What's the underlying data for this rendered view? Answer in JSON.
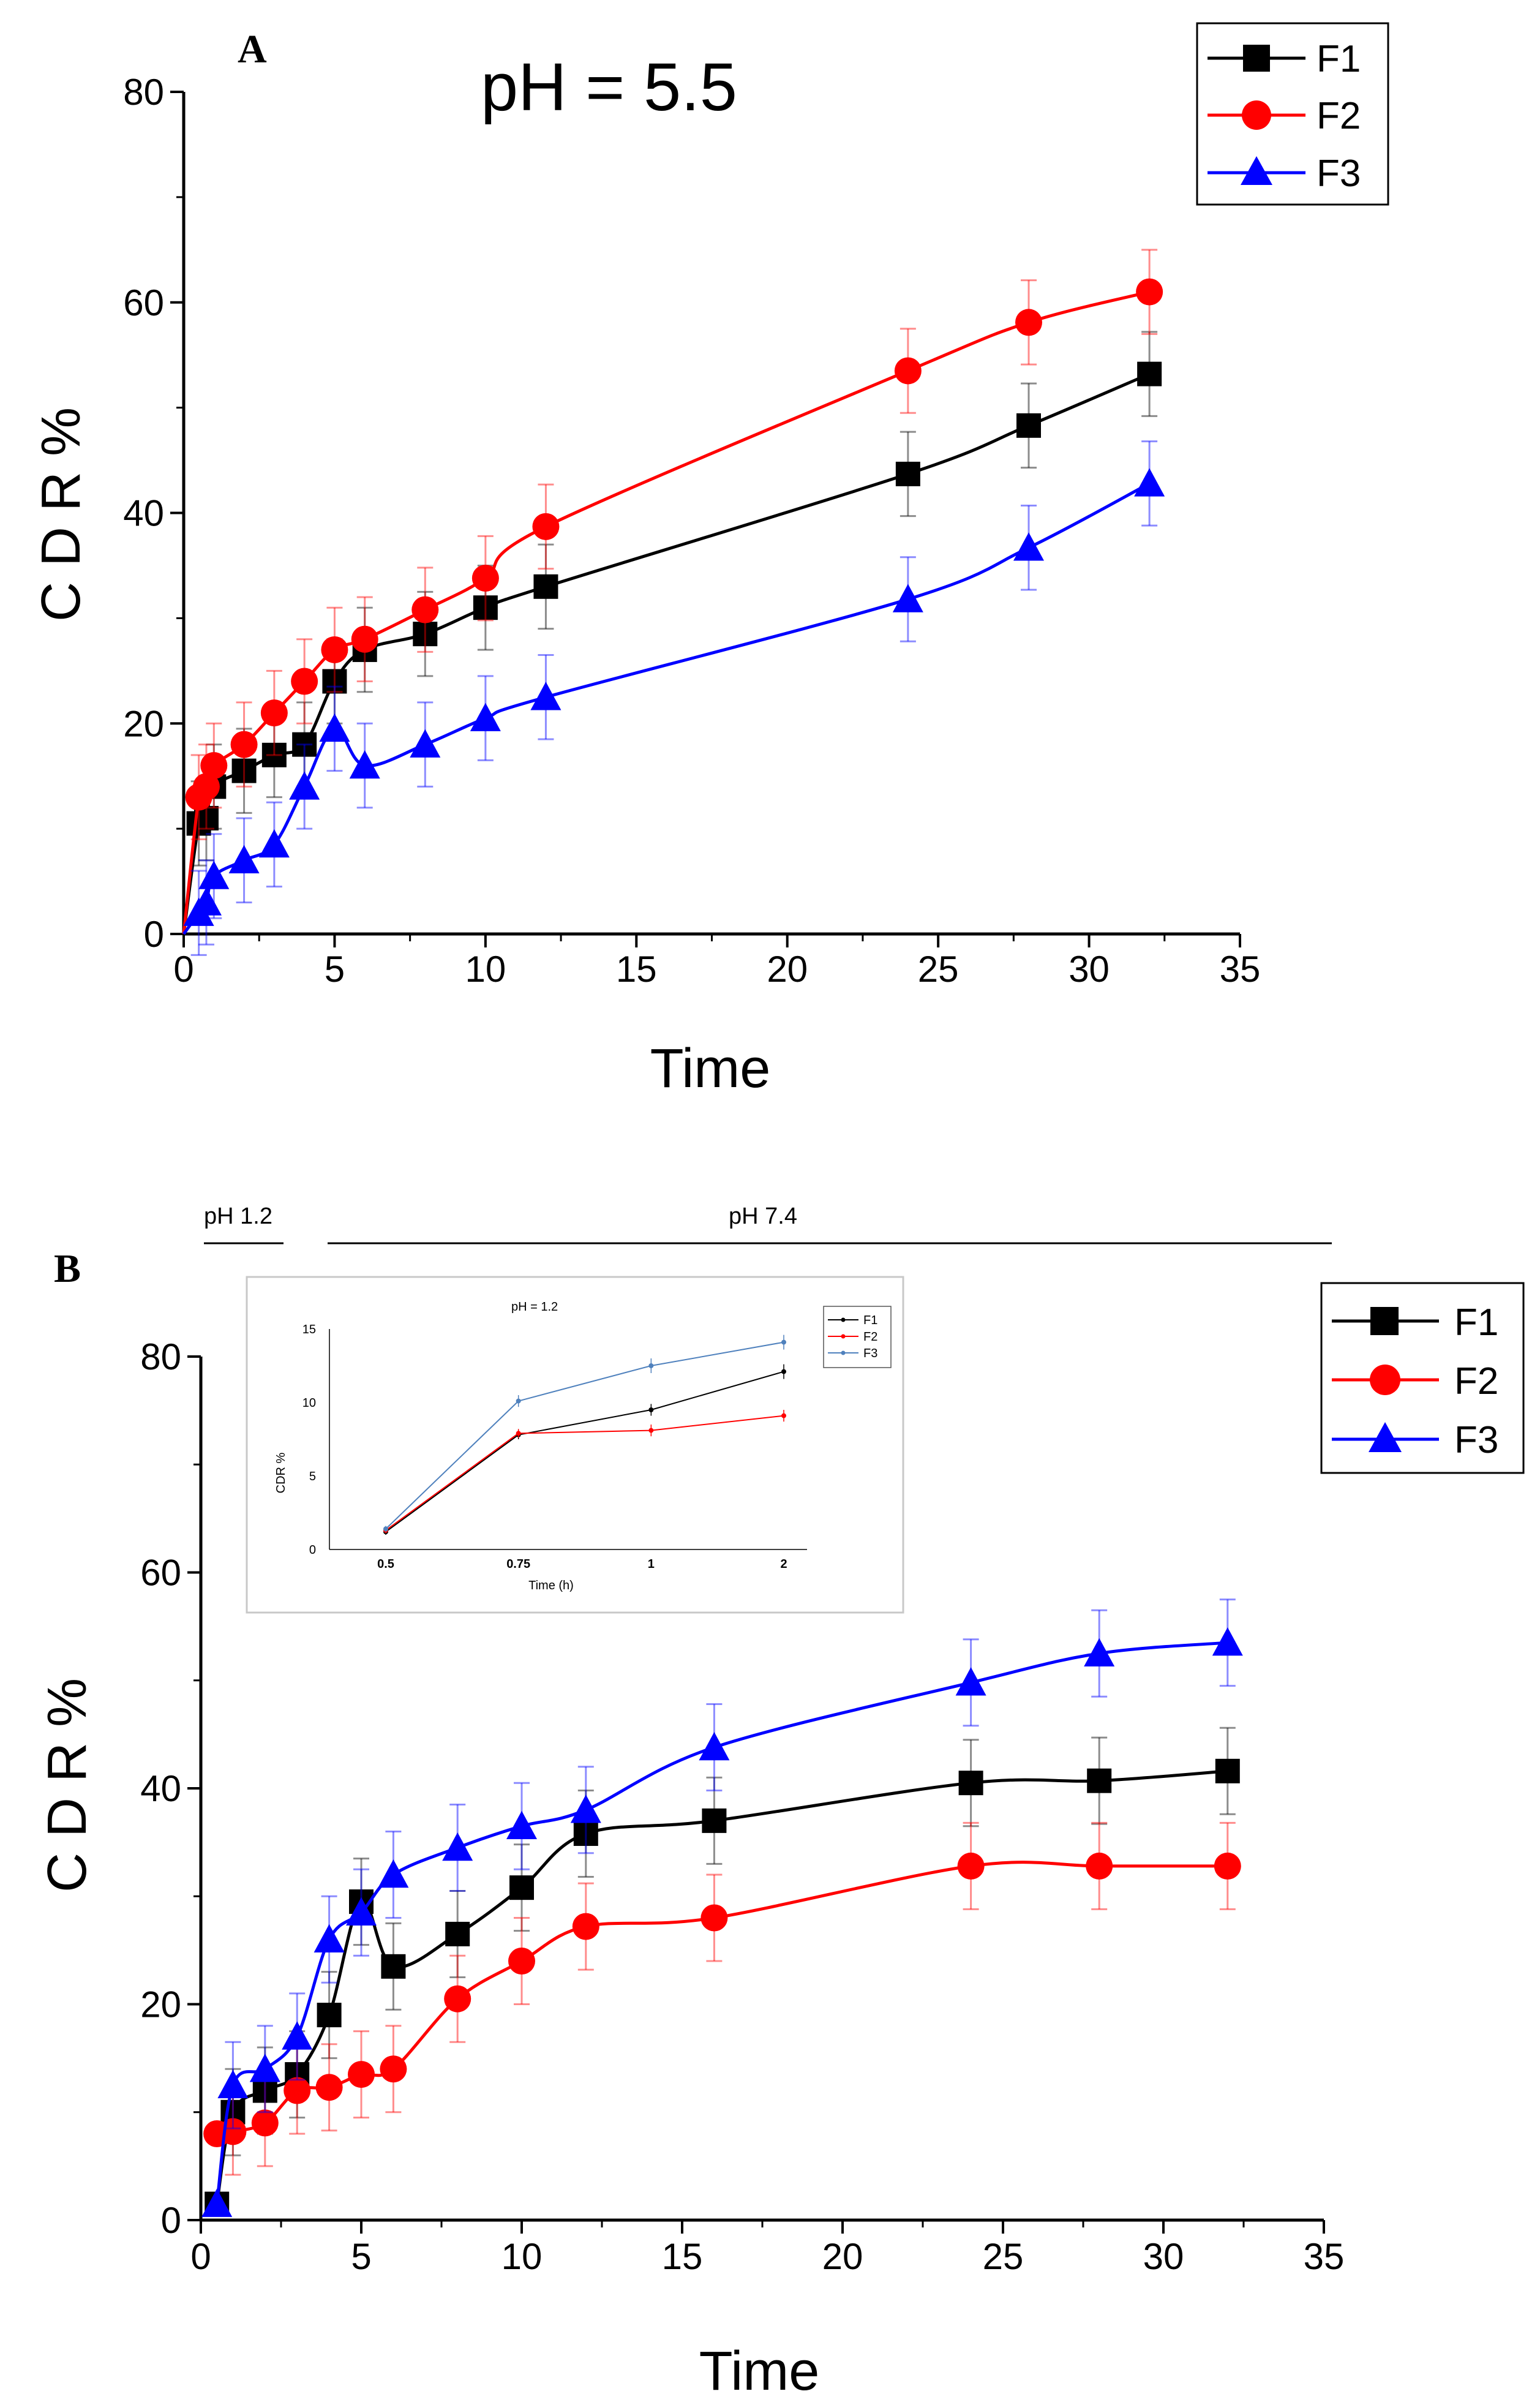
{
  "chart_data": [
    {
      "type": "line",
      "panel": "A",
      "title": "pH = 5.5",
      "xlabel": "Time",
      "ylabel": "C D R %",
      "xlim": [
        0,
        35
      ],
      "ylim": [
        0,
        80
      ],
      "xticks": [
        0,
        5,
        10,
        15,
        20,
        25,
        30,
        35
      ],
      "yticks": [
        0,
        20,
        40,
        60,
        80
      ],
      "legend_position": "top-right",
      "series": [
        {
          "name": "F1",
          "color": "#000000",
          "marker": "square",
          "x": [
            0,
            0.5,
            0.75,
            1,
            2,
            3,
            4,
            5,
            6,
            8,
            10,
            12,
            24,
            28,
            32
          ],
          "y": [
            0,
            10.5,
            11,
            14,
            15.5,
            17,
            18,
            24,
            27,
            28.5,
            31,
            33,
            43.7,
            48.3,
            53.2
          ],
          "err": [
            0,
            4,
            4,
            4,
            4,
            4,
            4,
            4,
            4,
            4,
            4,
            4,
            4,
            4,
            4
          ]
        },
        {
          "name": "F2",
          "color": "#ff0000",
          "marker": "circle",
          "x": [
            0,
            0.5,
            0.75,
            1,
            2,
            3,
            4,
            5,
            6,
            8,
            10,
            12,
            24,
            28,
            32
          ],
          "y": [
            0,
            13,
            14,
            16,
            18,
            21,
            24,
            27,
            28,
            30.8,
            33.8,
            38.7,
            53.5,
            58.1,
            61
          ],
          "err": [
            0,
            4,
            4,
            4,
            4,
            4,
            4,
            4,
            4,
            4,
            4,
            4,
            4,
            4,
            4
          ]
        },
        {
          "name": "F3",
          "color": "#0000ff",
          "marker": "triangle",
          "x": [
            0,
            0.5,
            0.75,
            1,
            2,
            3,
            4,
            5,
            6,
            8,
            10,
            12,
            24,
            28,
            32
          ],
          "y": [
            0,
            2,
            3,
            5.5,
            7,
            8.5,
            14,
            19.5,
            16,
            18,
            20.5,
            22.5,
            31.8,
            36.7,
            42.8
          ],
          "err": [
            0,
            4,
            4,
            4,
            4,
            4,
            4,
            4,
            4,
            4,
            4,
            4,
            4,
            4,
            4
          ]
        }
      ]
    },
    {
      "type": "line",
      "panel": "B",
      "xlabel": "Time",
      "ylabel": "C D R %",
      "xlim": [
        0,
        35
      ],
      "ylim": [
        0,
        80
      ],
      "xticks": [
        0,
        5,
        10,
        15,
        20,
        25,
        30,
        35
      ],
      "yticks": [
        0,
        20,
        40,
        60,
        80
      ],
      "legend_position": "top-right",
      "annotations": [
        {
          "text": "pH 1.2",
          "x_from": 0,
          "x_to": 2.5
        },
        {
          "text": "pH 7.4",
          "x_from": 4,
          "x_to": 35
        }
      ],
      "series": [
        {
          "name": "F1",
          "color": "#000000",
          "marker": "square",
          "x": [
            0.5,
            1,
            2,
            3,
            4,
            5,
            6,
            8,
            10,
            12,
            16,
            24,
            28,
            32
          ],
          "y": [
            1.5,
            10,
            12,
            13.5,
            19,
            29.5,
            23.5,
            26.5,
            30.8,
            35.8,
            37,
            40.5,
            40.7,
            41.6
          ],
          "err": [
            0,
            4,
            4,
            4,
            4,
            4,
            4,
            4,
            4,
            4,
            4,
            4,
            4,
            4
          ]
        },
        {
          "name": "F2",
          "color": "#ff0000",
          "marker": "circle",
          "x": [
            0.5,
            1,
            2,
            3,
            4,
            5,
            6,
            8,
            10,
            12,
            16,
            24,
            28,
            32
          ],
          "y": [
            8,
            8.2,
            9,
            12,
            12.3,
            13.5,
            14,
            20.5,
            24,
            27.2,
            28,
            32.8,
            32.8,
            32.8
          ],
          "err": [
            0,
            4,
            4,
            4,
            4,
            4,
            4,
            4,
            4,
            4,
            4,
            4,
            4,
            4
          ]
        },
        {
          "name": "F3",
          "color": "#0000ff",
          "marker": "triangle",
          "x": [
            0.5,
            1,
            2,
            3,
            4,
            5,
            6,
            8,
            10,
            12,
            16,
            24,
            28,
            32
          ],
          "y": [
            1.5,
            12.5,
            14,
            17,
            26,
            28.5,
            32,
            34.5,
            36.5,
            38,
            43.8,
            49.8,
            52.5,
            53.5
          ],
          "err": [
            0,
            4,
            4,
            4,
            4,
            4,
            4,
            4,
            4,
            4,
            4,
            4,
            4,
            4
          ]
        }
      ]
    },
    {
      "type": "line",
      "panel": "B-inset",
      "title": "pH = 1.2",
      "xlabel": "Time (h)",
      "ylabel": "CDR %",
      "categories": [
        "0.5",
        "0.75",
        "1",
        "2"
      ],
      "ylim": [
        0,
        15
      ],
      "yticks": [
        0,
        5,
        10,
        15
      ],
      "legend_position": "top-right",
      "series": [
        {
          "name": "F1",
          "color": "#000000",
          "values": [
            1.2,
            7.8,
            9.5,
            12.1
          ],
          "err": [
            0.2,
            0.3,
            0.4,
            0.5
          ]
        },
        {
          "name": "F2",
          "color": "#ff0000",
          "values": [
            1.3,
            7.9,
            8.1,
            9.1
          ],
          "err": [
            0.2,
            0.3,
            0.4,
            0.4
          ]
        },
        {
          "name": "F3",
          "color": "#4f81bd",
          "values": [
            1.4,
            10.1,
            12.5,
            14.1
          ],
          "err": [
            0.2,
            0.4,
            0.5,
            0.5
          ]
        }
      ]
    }
  ]
}
